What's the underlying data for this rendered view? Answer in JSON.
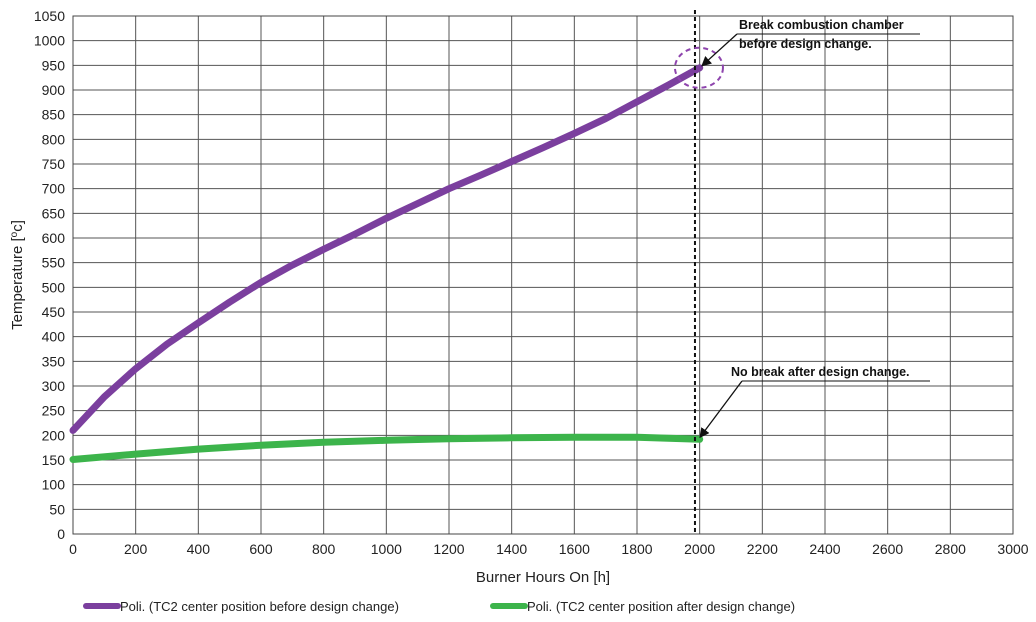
{
  "chart_data": {
    "type": "line",
    "xlabel": "Burner Hours On [h]",
    "ylabel": "Temperature [",
    "ylabel_sup": "o",
    "ylabel_suffix": "c]",
    "xlim": [
      0,
      3000
    ],
    "ylim": [
      0,
      1050
    ],
    "x_ticks": [
      0,
      200,
      400,
      600,
      800,
      1000,
      1200,
      1400,
      1600,
      1800,
      2000,
      2200,
      2400,
      2600,
      2800,
      3000
    ],
    "y_ticks": [
      0,
      50,
      100,
      150,
      200,
      250,
      300,
      350,
      400,
      450,
      500,
      550,
      600,
      650,
      700,
      750,
      800,
      850,
      900,
      950,
      1000,
      1050
    ],
    "grid": true,
    "legend_position": "bottom",
    "series": [
      {
        "name": "Poli. (TC2 center position before design change)",
        "color": "#7b3f9e",
        "x": [
          0,
          100,
          200,
          300,
          400,
          500,
          600,
          700,
          800,
          900,
          1000,
          1100,
          1200,
          1300,
          1400,
          1500,
          1600,
          1700,
          1800,
          1900,
          2000
        ],
        "y": [
          210,
          278,
          335,
          385,
          428,
          470,
          510,
          545,
          577,
          608,
          640,
          670,
          700,
          727,
          755,
          783,
          812,
          842,
          876,
          910,
          945
        ]
      },
      {
        "name": "Poli. (TC2 center position after design change)",
        "color": "#3cb44b",
        "x": [
          0,
          200,
          400,
          600,
          800,
          1000,
          1200,
          1400,
          1600,
          1800,
          2000
        ],
        "y": [
          151,
          162,
          172,
          180,
          186,
          190,
          193,
          195,
          196,
          196,
          192
        ]
      }
    ],
    "vertical_line": {
      "x": 1985,
      "style": "dashed"
    },
    "annotations": [
      {
        "text_lines": [
          "Break combustion chamber",
          "before design change."
        ],
        "x": 1985,
        "y": 945,
        "marker": "dashed-circle"
      },
      {
        "text_lines": [
          "No break after design change."
        ],
        "x": 1985,
        "y": 192
      }
    ]
  }
}
